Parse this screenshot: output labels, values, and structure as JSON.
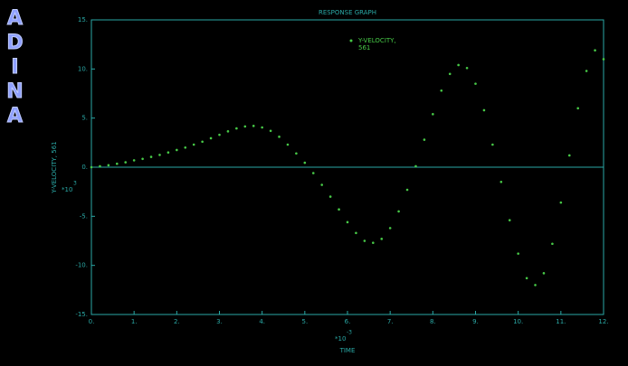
{
  "logo": "ADINA",
  "chart_data": {
    "type": "line",
    "title": "RESPONSE GRAPH",
    "x_label": "TIME",
    "y_label": "Y-VELOCITY, 561",
    "x_multiplier": {
      "base": "*10",
      "exponent": "-3"
    },
    "y_multiplier": {
      "base": "*10",
      "exponent": "3"
    },
    "frame_color": "#2aa9a6",
    "zero_line": true,
    "legend_position": "upper center",
    "x": [
      0,
      0.2,
      0.4,
      0.6,
      0.8,
      1,
      1.2,
      1.4,
      1.6,
      1.8,
      2,
      2.2,
      2.4,
      2.6,
      2.8,
      3,
      3.2,
      3.4,
      3.6,
      3.8,
      4,
      4.2,
      4.4,
      4.6,
      4.8,
      5,
      5.2,
      5.4,
      5.6,
      5.8,
      6,
      6.2,
      6.4,
      6.6,
      6.8,
      7,
      7.2,
      7.4,
      7.6,
      7.8,
      8,
      8.2,
      8.4,
      8.6,
      8.8,
      9,
      9.2,
      9.4,
      9.6,
      9.8,
      10,
      10.2,
      10.4,
      10.6,
      10.8,
      11,
      11.2,
      11.4,
      11.6,
      11.8,
      12
    ],
    "series": [
      {
        "name": "Y-VELOCITY,",
        "name_line2": "561",
        "color": "#47c947",
        "values": [
          0,
          0.1,
          0.2,
          0.35,
          0.5,
          0.7,
          0.85,
          1.05,
          1.25,
          1.5,
          1.75,
          2.0,
          2.3,
          2.6,
          2.95,
          3.3,
          3.65,
          3.95,
          4.15,
          4.2,
          4.05,
          3.7,
          3.1,
          2.3,
          1.4,
          0.45,
          -0.6,
          -1.8,
          -3.0,
          -4.3,
          -5.6,
          -6.7,
          -7.5,
          -7.7,
          -7.3,
          -6.2,
          -4.5,
          -2.3,
          0.1,
          2.8,
          5.4,
          7.8,
          9.5,
          10.4,
          10.1,
          8.5,
          5.8,
          2.3,
          -1.5,
          -5.4,
          -8.8,
          -11.3,
          -12.0,
          -10.8,
          -7.8,
          -3.6,
          1.2,
          6.0,
          9.8,
          11.9,
          11.0
        ]
      }
    ],
    "xlim": [
      0,
      12
    ],
    "ylim": [
      -15,
      15
    ],
    "xticks": [
      {
        "value": 0,
        "label": "0."
      },
      {
        "value": 1,
        "label": "1."
      },
      {
        "value": 2,
        "label": "2."
      },
      {
        "value": 3,
        "label": "3."
      },
      {
        "value": 4,
        "label": "4."
      },
      {
        "value": 5,
        "label": "5."
      },
      {
        "value": 6,
        "label": "6."
      },
      {
        "value": 7,
        "label": "7."
      },
      {
        "value": 8,
        "label": "8."
      },
      {
        "value": 9,
        "label": "9."
      },
      {
        "value": 10,
        "label": "10."
      },
      {
        "value": 11,
        "label": "11."
      },
      {
        "value": 12,
        "label": "12."
      }
    ],
    "yticks": [
      {
        "value": -15,
        "label": "-15."
      },
      {
        "value": -10,
        "label": "-10."
      },
      {
        "value": -5,
        "label": "-5."
      },
      {
        "value": 0,
        "label": "0."
      },
      {
        "value": 5,
        "label": "5."
      },
      {
        "value": 10,
        "label": "10."
      },
      {
        "value": 15,
        "label": "15."
      }
    ]
  }
}
